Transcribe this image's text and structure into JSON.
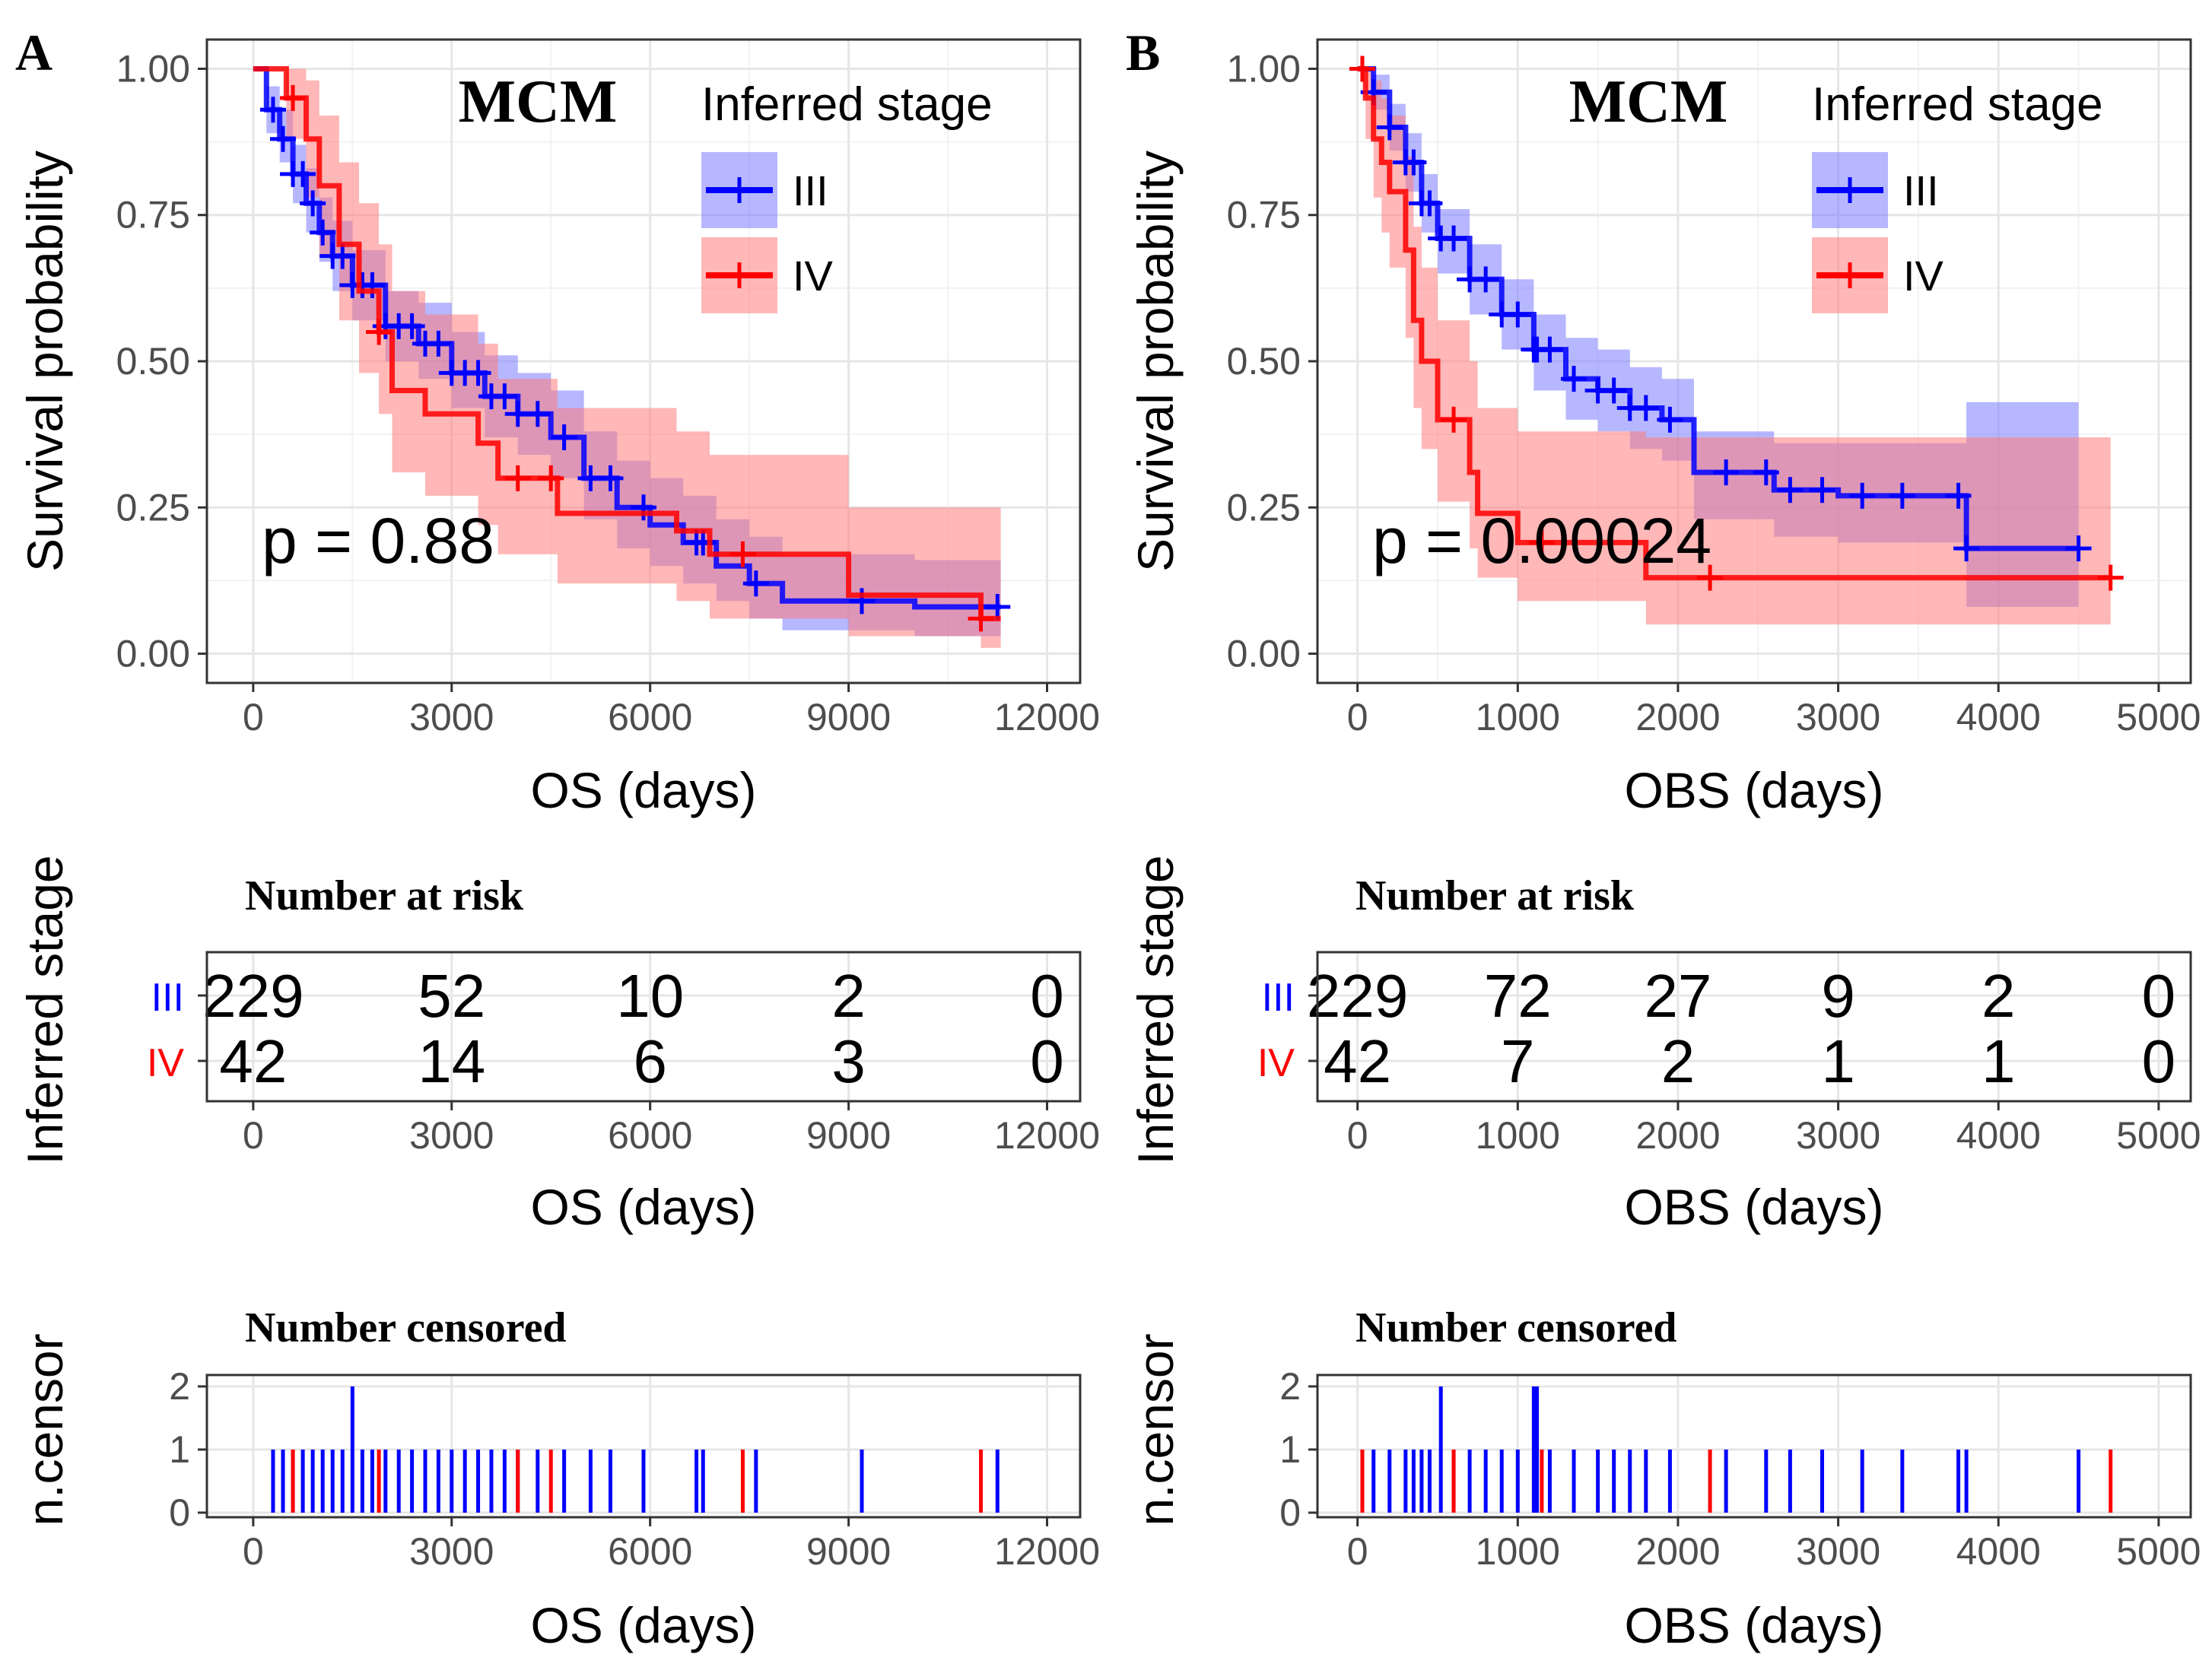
{
  "colors": {
    "stage_iii": "#0000ff",
    "stage_iii_fill": "#7b7bff",
    "stage_iv": "#ff0000",
    "stage_iv_fill": "#ff7b7b",
    "grid": "#e6e6e6",
    "axis": "#333333",
    "tick_text": "#4d4d4d"
  },
  "panels": [
    {
      "letter": "A",
      "tag": "MCM",
      "pvalue": "p = 0.88",
      "ylabel": "Survival probability",
      "xlabel": "OS (days)",
      "legend_title": "Inferred stage",
      "legend_items": [
        "III",
        "IV"
      ],
      "risk_title": "Number at risk",
      "risk_ylabel": "Inferred stage",
      "risk_rows": [
        {
          "label": "III",
          "values": [
            "229",
            "52",
            "10",
            "2",
            "0"
          ]
        },
        {
          "label": "IV",
          "values": [
            "42",
            "14",
            "6",
            "3",
            "0"
          ]
        }
      ],
      "cens_title": "Number censored",
      "cens_ylabel": "n.censor",
      "chart_data": {
        "type": "line",
        "title": "MCM",
        "xlabel": "OS (days)",
        "ylabel": "Survival probability",
        "xlim": [
          -700,
          12500
        ],
        "ylim": [
          -0.05,
          1.05
        ],
        "xticks": [
          0,
          3000,
          6000,
          9000,
          12000
        ],
        "xtick_labels": [
          "0",
          "3000",
          "6000",
          "9000",
          "12000"
        ],
        "yticks": [
          0,
          0.25,
          0.5,
          0.75,
          1.0
        ],
        "ytick_labels": [
          "0.00",
          "0.25",
          "0.50",
          "0.75",
          "1.00"
        ],
        "series": [
          {
            "name": "III",
            "x": [
              0,
              200,
              400,
              600,
              800,
              1000,
              1200,
              1500,
              2000,
              2500,
              3000,
              3500,
              4000,
              4500,
              5000,
              5500,
              6000,
              6500,
              7000,
              7500,
              8000,
              9000,
              10000,
              11300
            ],
            "y": [
              1.0,
              0.93,
              0.88,
              0.82,
              0.77,
              0.72,
              0.68,
              0.63,
              0.56,
              0.53,
              0.48,
              0.44,
              0.41,
              0.37,
              0.3,
              0.25,
              0.22,
              0.19,
              0.15,
              0.12,
              0.09,
              0.09,
              0.08,
              0.08
            ],
            "lower": [
              1.0,
              0.89,
              0.84,
              0.77,
              0.72,
              0.67,
              0.62,
              0.57,
              0.5,
              0.47,
              0.42,
              0.37,
              0.34,
              0.3,
              0.23,
              0.18,
              0.15,
              0.12,
              0.09,
              0.06,
              0.04,
              0.04,
              0.03,
              0.03
            ],
            "upper": [
              1.0,
              0.97,
              0.93,
              0.87,
              0.83,
              0.78,
              0.74,
              0.69,
              0.62,
              0.6,
              0.55,
              0.51,
              0.48,
              0.45,
              0.38,
              0.33,
              0.3,
              0.27,
              0.23,
              0.2,
              0.17,
              0.17,
              0.16,
              0.16
            ],
            "censor_x": [
              300,
              450,
              600,
              750,
              900,
              1050,
              1200,
              1350,
              1500,
              1650,
              1800,
              2000,
              2200,
              2400,
              2600,
              2800,
              3000,
              3200,
              3400,
              3600,
              3800,
              4000,
              4300,
              4700,
              5100,
              5400,
              5900,
              6700,
              6800,
              7600,
              9200,
              11250
            ],
            "censor_counts": [
              1,
              1,
              1,
              1,
              1,
              1,
              1,
              1,
              2,
              1,
              1,
              1,
              1,
              1,
              1,
              1,
              1,
              1,
              1,
              1,
              1,
              1,
              1,
              1,
              1,
              1,
              1,
              1,
              1,
              1,
              1,
              1
            ]
          },
          {
            "name": "IV",
            "x": [
              0,
              500,
              800,
              1000,
              1300,
              1600,
              1900,
              2100,
              2600,
              3400,
              3700,
              4100,
              4600,
              5400,
              6400,
              6900,
              8000,
              9000,
              11000,
              11300
            ],
            "y": [
              1.0,
              0.95,
              0.88,
              0.8,
              0.7,
              0.62,
              0.55,
              0.45,
              0.41,
              0.36,
              0.3,
              0.3,
              0.24,
              0.24,
              0.21,
              0.17,
              0.17,
              0.1,
              0.06,
              0.06
            ],
            "lower": [
              1.0,
              0.88,
              0.78,
              0.68,
              0.57,
              0.48,
              0.41,
              0.31,
              0.27,
              0.22,
              0.17,
              0.17,
              0.12,
              0.12,
              0.09,
              0.06,
              0.06,
              0.03,
              0.01,
              0.01
            ],
            "upper": [
              1.0,
              1.0,
              0.98,
              0.92,
              0.84,
              0.77,
              0.7,
              0.62,
              0.58,
              0.53,
              0.47,
              0.47,
              0.42,
              0.42,
              0.38,
              0.34,
              0.34,
              0.25,
              0.25,
              0.25
            ],
            "censor_x": [
              600,
              1900,
              4000,
              4500,
              7400,
              11000
            ],
            "censor_counts": [
              1,
              1,
              1,
              1,
              1,
              1
            ]
          }
        ]
      }
    },
    {
      "letter": "B",
      "tag": "MCM",
      "pvalue": "p = 0.00024",
      "ylabel": "Survival probability",
      "xlabel": "OBS (days)",
      "legend_title": "Inferred stage",
      "legend_items": [
        "III",
        "IV"
      ],
      "risk_title": "Number at risk",
      "risk_ylabel": "Inferred stage",
      "risk_rows": [
        {
          "label": "III",
          "values": [
            "229",
            "72",
            "27",
            "9",
            "2",
            "0"
          ]
        },
        {
          "label": "IV",
          "values": [
            "42",
            "7",
            "2",
            "1",
            "1",
            "0"
          ]
        }
      ],
      "cens_title": "Number censored",
      "cens_ylabel": "n.censor",
      "chart_data": {
        "type": "line",
        "title": "MCM",
        "xlabel": "OBS (days)",
        "ylabel": "Survival probability",
        "xlim": [
          -250,
          5200
        ],
        "ylim": [
          -0.05,
          1.05
        ],
        "xticks": [
          0,
          1000,
          2000,
          3000,
          4000,
          5000
        ],
        "xtick_labels": [
          "0",
          "1000",
          "2000",
          "3000",
          "4000",
          "5000"
        ],
        "yticks": [
          0,
          0.25,
          0.5,
          0.75,
          1.0
        ],
        "ytick_labels": [
          "0.00",
          "0.25",
          "0.50",
          "0.75",
          "1.00"
        ],
        "series": [
          {
            "name": "III",
            "x": [
              0,
              100,
              200,
              300,
              400,
              500,
              700,
              900,
              1100,
              1300,
              1500,
              1700,
              1900,
              2100,
              2300,
              2600,
              3000,
              3800,
              4500
            ],
            "y": [
              1.0,
              0.96,
              0.9,
              0.84,
              0.77,
              0.71,
              0.64,
              0.58,
              0.52,
              0.47,
              0.45,
              0.42,
              0.4,
              0.31,
              0.31,
              0.28,
              0.27,
              0.18,
              0.18
            ],
            "lower": [
              1.0,
              0.93,
              0.86,
              0.79,
              0.72,
              0.65,
              0.58,
              0.52,
              0.45,
              0.4,
              0.38,
              0.35,
              0.33,
              0.23,
              0.23,
              0.2,
              0.19,
              0.08,
              0.08
            ],
            "upper": [
              1.0,
              0.99,
              0.94,
              0.89,
              0.82,
              0.76,
              0.7,
              0.64,
              0.58,
              0.54,
              0.52,
              0.49,
              0.47,
              0.38,
              0.38,
              0.36,
              0.36,
              0.43,
              0.43
            ],
            "censor_x": [
              30,
              100,
              200,
              300,
              350,
              400,
              450,
              520,
              600,
              700,
              800,
              900,
              1000,
              1100,
              1120,
              1200,
              1350,
              1500,
              1600,
              1700,
              1800,
              1950,
              2300,
              2550,
              2700,
              2900,
              3150,
              3400,
              3750,
              3800,
              4500
            ],
            "censor_counts": [
              1,
              1,
              1,
              1,
              1,
              1,
              1,
              2,
              1,
              1,
              1,
              1,
              1,
              2,
              2,
              1,
              1,
              1,
              1,
              1,
              1,
              1,
              1,
              1,
              1,
              1,
              1,
              1,
              1,
              1,
              1
            ]
          },
          {
            "name": "IV",
            "x": [
              0,
              50,
              100,
              150,
              200,
              300,
              350,
              400,
              500,
              600,
              700,
              750,
              800,
              1000,
              1800,
              4700
            ],
            "y": [
              1.0,
              0.95,
              0.88,
              0.84,
              0.79,
              0.69,
              0.57,
              0.5,
              0.4,
              0.4,
              0.31,
              0.24,
              0.24,
              0.19,
              0.13,
              0.13
            ],
            "lower": [
              1.0,
              0.88,
              0.78,
              0.72,
              0.66,
              0.54,
              0.42,
              0.35,
              0.26,
              0.26,
              0.18,
              0.13,
              0.13,
              0.09,
              0.05,
              0.05
            ],
            "upper": [
              1.0,
              1.0,
              0.98,
              0.95,
              0.92,
              0.85,
              0.73,
              0.66,
              0.57,
              0.57,
              0.5,
              0.42,
              0.42,
              0.38,
              0.37,
              0.37
            ],
            "censor_x": [
              30,
              600,
              1150,
              2200,
              4700
            ],
            "censor_counts": [
              1,
              1,
              1,
              1,
              1
            ]
          }
        ]
      }
    }
  ]
}
